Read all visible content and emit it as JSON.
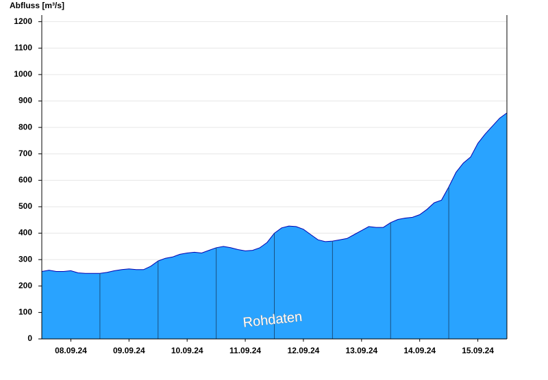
{
  "chart_data": {
    "type": "area",
    "y_label": "Abfluss [m³/s]",
    "annotation": "Rohdaten",
    "xlim": [
      0,
      8
    ],
    "xticks": [
      {
        "value": 0.5,
        "label": "08.09.24"
      },
      {
        "value": 1.5,
        "label": "09.09.24"
      },
      {
        "value": 2.5,
        "label": "10.09.24"
      },
      {
        "value": 3.5,
        "label": "11.09.24"
      },
      {
        "value": 4.5,
        "label": "12.09.24"
      },
      {
        "value": 5.5,
        "label": "13.09.24"
      },
      {
        "value": 6.5,
        "label": "14.09.24"
      },
      {
        "value": 7.5,
        "label": "15.09.24"
      }
    ],
    "ylim": [
      0,
      1225
    ],
    "yticks": [
      0,
      100,
      200,
      300,
      400,
      500,
      600,
      700,
      800,
      900,
      1000,
      1100,
      1200
    ],
    "grid": true,
    "color": "#29a3ff",
    "line_color": "#0000b0",
    "x": [
      0,
      0.125,
      0.25,
      0.375,
      0.5,
      0.625,
      0.75,
      0.875,
      1,
      1.125,
      1.25,
      1.375,
      1.5,
      1.625,
      1.75,
      1.875,
      2,
      2.125,
      2.25,
      2.375,
      2.5,
      2.625,
      2.75,
      2.875,
      3,
      3.125,
      3.25,
      3.375,
      3.5,
      3.625,
      3.75,
      3.875,
      4,
      4.125,
      4.25,
      4.375,
      4.5,
      4.625,
      4.75,
      4.875,
      5,
      5.125,
      5.25,
      5.375,
      5.5,
      5.625,
      5.75,
      5.875,
      6,
      6.125,
      6.25,
      6.375,
      6.5,
      6.625,
      6.75,
      6.875,
      7,
      7.125,
      7.25,
      7.375,
      7.5,
      7.625,
      7.75,
      7.875,
      8
    ],
    "values": [
      255,
      260,
      255,
      255,
      258,
      250,
      248,
      248,
      248,
      252,
      258,
      262,
      265,
      262,
      262,
      275,
      295,
      305,
      310,
      320,
      325,
      328,
      325,
      335,
      345,
      350,
      345,
      338,
      333,
      335,
      345,
      365,
      400,
      420,
      427,
      425,
      415,
      395,
      375,
      368,
      370,
      375,
      380,
      395,
      410,
      425,
      422,
      422,
      440,
      452,
      457,
      460,
      470,
      490,
      515,
      525,
      575,
      630,
      665,
      688,
      740,
      775,
      805,
      835,
      855
    ]
  }
}
